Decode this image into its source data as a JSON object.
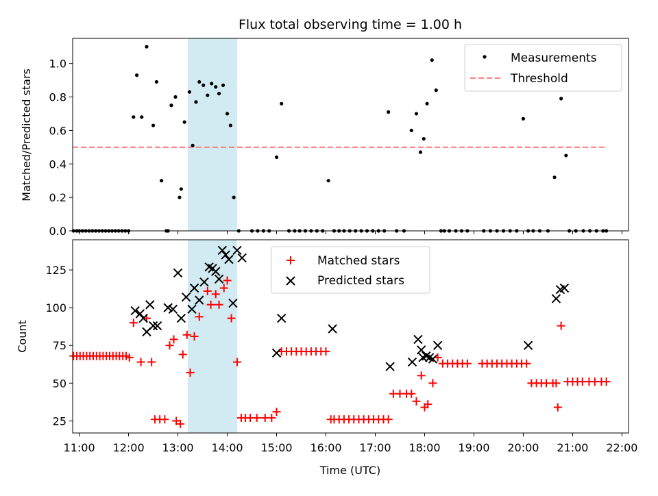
{
  "title": "Flux total observing time = 1.00 h",
  "top_panel": {
    "ylabel": "Matched/Predicted stars",
    "legend": {
      "measurements": "Measurements",
      "threshold": "Threshold"
    }
  },
  "bottom_panel": {
    "ylabel": "Count",
    "xlabel": "Time (UTC)",
    "legend": {
      "matched": "Matched stars",
      "predicted": "Predicted stars"
    }
  },
  "colors": {
    "measurements": "#000000",
    "threshold": "#ff7f7f",
    "matched": "#ff0000",
    "predicted": "#000000",
    "span": "#add8e6"
  },
  "chart_data": [
    {
      "type": "scatter",
      "title": "Flux total observing time = 1.00 h",
      "xlabel": "",
      "ylabel": "Matched/Predicted stars",
      "xlim": [
        "10:52",
        "22:08"
      ],
      "ylim": [
        0,
        1.15
      ],
      "yticks": [
        0.0,
        0.2,
        0.4,
        0.6,
        0.8,
        1.0
      ],
      "legend_position": "top-right",
      "highlight_span": [
        "13:12",
        "14:12"
      ],
      "threshold": {
        "name": "Threshold",
        "y": 0.5,
        "x_range": [
          "10:52",
          "21:41"
        ],
        "style": "dashed"
      },
      "series": [
        {
          "name": "Measurements",
          "x": [
            "10:53",
            "10:57",
            "11:00",
            "11:04",
            "11:08",
            "11:12",
            "11:16",
            "11:20",
            "11:24",
            "11:28",
            "11:32",
            "11:36",
            "11:40",
            "11:44",
            "11:48",
            "11:52",
            "11:56",
            "12:00",
            "12:06",
            "12:10",
            "12:16",
            "12:22",
            "12:30",
            "12:34",
            "12:40",
            "12:46",
            "12:48",
            "12:52",
            "12:57",
            "13:02",
            "13:04",
            "13:08",
            "13:14",
            "13:18",
            "13:22",
            "13:26",
            "13:31",
            "13:36",
            "13:41",
            "13:46",
            "13:50",
            "13:55",
            "14:00",
            "14:04",
            "14:08",
            "14:14",
            "14:30",
            "14:37",
            "14:44",
            "14:51",
            "15:00",
            "15:06",
            "15:15",
            "15:22",
            "15:28",
            "15:35",
            "15:42",
            "15:49",
            "15:56",
            "16:03",
            "16:10",
            "16:16",
            "16:22",
            "16:29",
            "16:36",
            "16:43",
            "16:50",
            "16:57",
            "17:04",
            "17:11",
            "17:16",
            "17:26",
            "17:35",
            "17:44",
            "17:50",
            "17:55",
            "17:59",
            "18:03",
            "18:09",
            "18:14",
            "18:20",
            "18:24",
            "18:30",
            "18:38",
            "18:45",
            "18:52",
            "19:12",
            "19:20",
            "19:28",
            "19:36",
            "19:44",
            "19:52",
            "20:00",
            "20:06",
            "20:12",
            "20:20",
            "20:30",
            "20:38",
            "20:46",
            "20:52",
            "20:56",
            "21:04",
            "21:13",
            "21:21",
            "21:29",
            "21:37",
            "21:41"
          ],
          "y": [
            0,
            0,
            0,
            0,
            0,
            0,
            0,
            0,
            0,
            0,
            0,
            0,
            0,
            0,
            0,
            0,
            0,
            0,
            0.68,
            0.93,
            0.68,
            1.1,
            0.63,
            0.89,
            0.3,
            0,
            0,
            0.75,
            0.8,
            0.2,
            0.25,
            0.65,
            0.83,
            0.51,
            0.77,
            0.89,
            0.87,
            0.81,
            0.88,
            0.86,
            0.82,
            0.87,
            0.7,
            0.63,
            0.2,
            0,
            0,
            0,
            0,
            0,
            0.44,
            0.76,
            0,
            0,
            0,
            0,
            0,
            0,
            0,
            0.3,
            0,
            0,
            0,
            0,
            0,
            0,
            0,
            0,
            0,
            0,
            0.71,
            0,
            0,
            0.6,
            0.7,
            0.47,
            0.55,
            0.76,
            1.02,
            0.84,
            0,
            0,
            0,
            0,
            0,
            0,
            0,
            0,
            0,
            0,
            0,
            0,
            0.67,
            0,
            0,
            0,
            0,
            0.32,
            0.79,
            0.45,
            0,
            0,
            0,
            0,
            0,
            0,
            0
          ]
        }
      ]
    },
    {
      "type": "scatter",
      "xlabel": "Time (UTC)",
      "ylabel": "Count",
      "xlim": [
        "10:52",
        "22:08"
      ],
      "ylim": [
        17,
        145
      ],
      "yticks": [
        25,
        50,
        75,
        100,
        125
      ],
      "xticks": [
        "11:00",
        "12:00",
        "13:00",
        "14:00",
        "15:00",
        "16:00",
        "17:00",
        "18:00",
        "19:00",
        "20:00",
        "21:00",
        "22:00"
      ],
      "legend_position": "top-center",
      "highlight_span": [
        "13:12",
        "14:12"
      ],
      "series": [
        {
          "name": "Matched stars",
          "marker": "+",
          "x": [
            "10:53",
            "10:57",
            "11:01",
            "11:05",
            "11:09",
            "11:13",
            "11:17",
            "11:21",
            "11:25",
            "11:29",
            "11:33",
            "11:37",
            "11:41",
            "11:45",
            "11:49",
            "11:53",
            "11:57",
            "12:01",
            "12:06",
            "12:15",
            "12:22",
            "12:28",
            "12:32",
            "12:38",
            "12:44",
            "12:50",
            "12:55",
            "12:58",
            "13:03",
            "13:06",
            "13:11",
            "13:15",
            "13:20",
            "13:26",
            "13:36",
            "13:40",
            "13:46",
            "13:50",
            "13:56",
            "14:00",
            "14:05",
            "14:12",
            "14:17",
            "14:22",
            "14:28",
            "14:36",
            "14:46",
            "14:54",
            "15:00",
            "15:06",
            "15:12",
            "15:18",
            "15:24",
            "15:30",
            "15:36",
            "15:42",
            "15:48",
            "15:54",
            "16:00",
            "16:06",
            "16:10",
            "16:16",
            "16:22",
            "16:28",
            "16:34",
            "16:40",
            "16:46",
            "16:52",
            "16:58",
            "17:04",
            "17:10",
            "17:16",
            "17:22",
            "17:30",
            "17:38",
            "17:44",
            "17:50",
            "17:56",
            "18:00",
            "18:04",
            "18:10",
            "18:16",
            "18:22",
            "18:28",
            "18:34",
            "18:40",
            "18:46",
            "18:52",
            "19:10",
            "19:16",
            "19:22",
            "19:28",
            "19:34",
            "19:40",
            "19:46",
            "19:52",
            "19:58",
            "20:04",
            "20:10",
            "20:16",
            "20:22",
            "20:28",
            "20:36",
            "20:40",
            "20:42",
            "20:46",
            "20:54",
            "21:00",
            "21:06",
            "21:12",
            "21:20",
            "21:27",
            "21:35",
            "21:41"
          ],
          "y": [
            68,
            68,
            68,
            68,
            68,
            68,
            68,
            68,
            68,
            68,
            68,
            68,
            68,
            68,
            68,
            68,
            68,
            67,
            90,
            64,
            93,
            64,
            26,
            26,
            26,
            75,
            79,
            25,
            23,
            69,
            82,
            57,
            81,
            94,
            111,
            102,
            109,
            102,
            113,
            118,
            93,
            64,
            27,
            27,
            27,
            27,
            27,
            27,
            31,
            71,
            71,
            71,
            71,
            71,
            71,
            71,
            71,
            71,
            71,
            26,
            26,
            26,
            26,
            26,
            26,
            26,
            26,
            26,
            26,
            26,
            26,
            26,
            43,
            43,
            43,
            43,
            38,
            55,
            34,
            36,
            50,
            67,
            63,
            63,
            63,
            63,
            63,
            63,
            63,
            63,
            63,
            63,
            63,
            63,
            63,
            63,
            63,
            63,
            50,
            50,
            50,
            50,
            50,
            50,
            34,
            88,
            51,
            51,
            51,
            51,
            51,
            51,
            51,
            51
          ]
        },
        {
          "name": "Predicted stars",
          "marker": "x",
          "x": [
            "12:08",
            "12:14",
            "12:18",
            "12:22",
            "12:26",
            "12:30",
            "12:35",
            "12:48",
            "12:54",
            "13:00",
            "13:04",
            "13:10",
            "13:17",
            "13:20",
            "13:26",
            "13:32",
            "13:38",
            "13:42",
            "13:46",
            "13:50",
            "13:54",
            "13:58",
            "14:02",
            "14:07",
            "14:12",
            "14:18",
            "15:00",
            "15:06",
            "16:08",
            "17:18",
            "17:45",
            "17:52",
            "17:56",
            "17:58",
            "18:02",
            "18:06",
            "18:10",
            "18:16",
            "20:06",
            "20:40",
            "20:45",
            "20:50"
          ],
          "y": [
            98,
            96,
            93,
            84,
            102,
            88,
            88,
            100,
            99,
            123,
            93,
            107,
            99,
            113,
            105,
            117,
            127,
            126,
            124,
            119,
            138,
            135,
            132,
            103,
            138,
            133,
            70,
            93,
            86,
            61,
            64,
            79,
            72,
            67,
            68,
            67,
            66,
            75,
            75,
            106,
            112,
            113
          ]
        }
      ]
    }
  ]
}
